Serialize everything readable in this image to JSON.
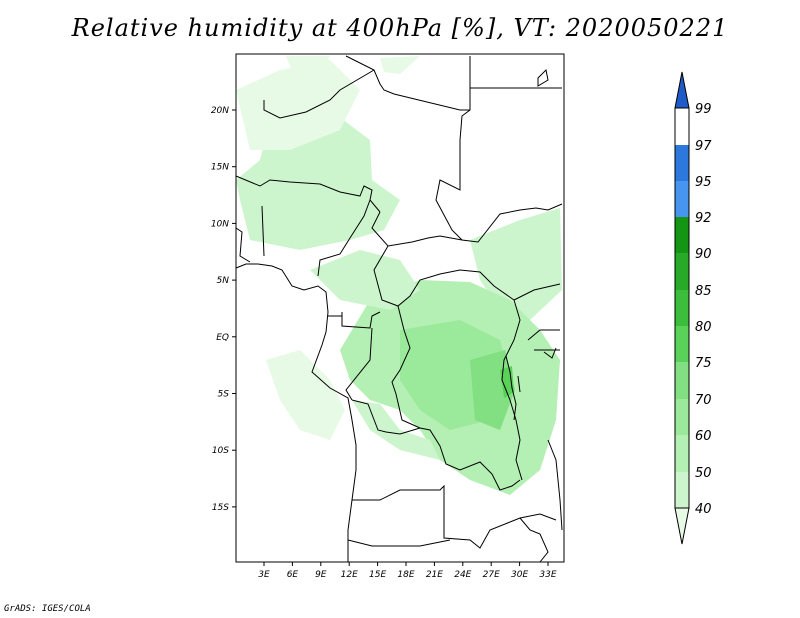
{
  "title": "Relative humidity at 400hPa [%], VT: 2020050221",
  "credit": "GrADS: IGES/COLA",
  "map": {
    "lat_labels": [
      "20N",
      "15N",
      "10N",
      "5N",
      "EQ",
      "5S",
      "10S",
      "15S"
    ],
    "lat_values": [
      20,
      15,
      10,
      5,
      0,
      -5,
      -10,
      -15
    ],
    "lon_labels": [
      "3E",
      "6E",
      "9E",
      "12E",
      "15E",
      "18E",
      "21E",
      "24E",
      "27E",
      "30E",
      "33E"
    ],
    "lon_values": [
      3,
      6,
      9,
      12,
      15,
      18,
      21,
      24,
      27,
      30,
      33
    ],
    "lon_range": [
      0,
      35
    ],
    "lat_range": [
      -20,
      25
    ]
  },
  "colorbar": {
    "labels": [
      "99",
      "97",
      "95",
      "92",
      "90",
      "85",
      "80",
      "75",
      "70",
      "60",
      "50",
      "40"
    ],
    "bins": [
      {
        "lo": 40,
        "hi": 50,
        "color": "#e6fae6"
      },
      {
        "lo": 50,
        "hi": 60,
        "color": "#cdf5cd"
      },
      {
        "lo": 60,
        "hi": 70,
        "color": "#b4efb4"
      },
      {
        "lo": 70,
        "hi": 75,
        "color": "#9be99b"
      },
      {
        "lo": 75,
        "hi": 80,
        "color": "#82e082"
      },
      {
        "lo": 80,
        "hi": 85,
        "color": "#5ad25a"
      },
      {
        "lo": 85,
        "hi": 90,
        "color": "#3cbe3c"
      },
      {
        "lo": 90,
        "hi": 92,
        "color": "#28aa28"
      },
      {
        "lo": 92,
        "hi": 95,
        "color": "#149614"
      },
      {
        "lo": 95,
        "hi": 97,
        "color": "#4696f0"
      },
      {
        "lo": 97,
        "hi": 99,
        "color": "#2d78dc"
      },
      {
        "lo": 99,
        "hi": 100,
        "color": "#1e5ac8"
      }
    ]
  },
  "humidity_patches": [
    {
      "name": "sahara-north",
      "color": "#e6fae6"
    },
    {
      "name": "sahel-west",
      "color": "#cdf5cd"
    },
    {
      "name": "chad-band",
      "color": "#e6fae6"
    },
    {
      "name": "east-band",
      "color": "#cdf5cd"
    },
    {
      "name": "congo-basin",
      "color": "#b4efb4"
    },
    {
      "name": "congo-core",
      "color": "#9be99b"
    },
    {
      "name": "congo-east",
      "color": "#82e082"
    },
    {
      "name": "lake-region",
      "color": "#5ad25a"
    },
    {
      "name": "atlantic-south",
      "color": "#e6fae6"
    },
    {
      "name": "angola-band",
      "color": "#cdf5cd"
    },
    {
      "name": "gulf-guinea",
      "color": "#cdf5cd"
    }
  ]
}
